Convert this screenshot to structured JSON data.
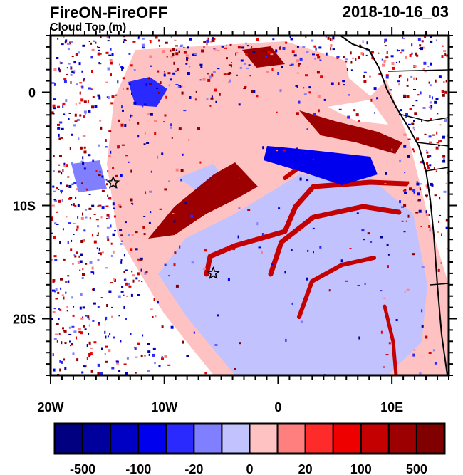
{
  "header": {
    "title": "FireON-FireOFF",
    "subtitle": "Cloud Top (m)",
    "timestamp": "2018-10-16_03"
  },
  "map": {
    "lon_range": [
      -20,
      15
    ],
    "lat_range": [
      -25,
      5
    ],
    "x_ticks": [
      {
        "lon": -20,
        "label": "20W"
      },
      {
        "lon": -10,
        "label": "10W"
      },
      {
        "lon": 0,
        "label": "0"
      },
      {
        "lon": 10,
        "label": "10E"
      }
    ],
    "y_ticks": [
      {
        "lat": 0,
        "label": "0"
      },
      {
        "lat": -10,
        "label": "10S"
      },
      {
        "lat": -20,
        "label": "20S"
      }
    ],
    "markers": [
      {
        "type": "star",
        "lon": -14.5,
        "lat": -8
      },
      {
        "type": "star",
        "lon": -5.7,
        "lat": -16
      }
    ]
  },
  "colorbar": {
    "colors": [
      "#000080",
      "#00009c",
      "#0000c4",
      "#0000ee",
      "#2a2aff",
      "#7f7fff",
      "#c2c2ff",
      "#ffc2c2",
      "#ff7f7f",
      "#ff2a2a",
      "#ee0000",
      "#c40000",
      "#9c0000",
      "#800000"
    ],
    "labels": [
      "-500",
      "-100",
      "-20",
      "0",
      "20",
      "100",
      "500"
    ]
  }
}
